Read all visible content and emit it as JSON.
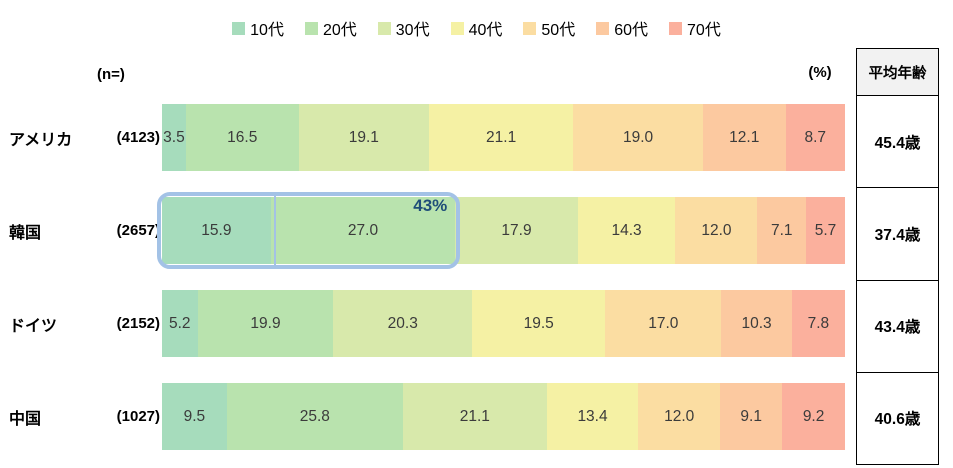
{
  "headers": {
    "n_label": "(n=)",
    "pct_label": "(%)",
    "avg_age_header": "平均年齢"
  },
  "chart_data": {
    "type": "bar",
    "subtype": "horizontal-stacked-100pct",
    "unit": "%",
    "legend_position": "top-center",
    "series_labels": [
      "10代",
      "20代",
      "30代",
      "40代",
      "50代",
      "60代",
      "70代"
    ],
    "series_colors": [
      "#a6dcbc",
      "#b9e3ae",
      "#d8e9ab",
      "#f5f1a4",
      "#fbdda2",
      "#fcc9a0",
      "#fbb09d"
    ],
    "rows": [
      {
        "country": "アメリカ",
        "n": "(4123)",
        "values": [
          "3.5",
          "16.5",
          "19.1",
          "21.1",
          "19.0",
          "12.1",
          "8.7"
        ],
        "avg_age": "45.4歳"
      },
      {
        "country": "韓国",
        "n": "(2657)",
        "values": [
          "15.9",
          "27.0",
          "17.9",
          "14.3",
          "12.0",
          "7.1",
          "5.7"
        ],
        "avg_age": "37.4歳"
      },
      {
        "country": "ドイツ",
        "n": "(2152)",
        "values": [
          "5.2",
          "19.9",
          "20.3",
          "19.5",
          "17.0",
          "10.3",
          "7.8"
        ],
        "avg_age": "43.4歳"
      },
      {
        "country": "中国",
        "n": "(1027)",
        "values": [
          "9.5",
          "25.8",
          "21.1",
          "13.4",
          "12.0",
          "9.1",
          "9.2"
        ],
        "avg_age": "40.6歳"
      }
    ],
    "highlight": {
      "row_index": 1,
      "segment_span": [
        0,
        1
      ],
      "label": "43%",
      "border_color": "#a3c2e6",
      "label_color": "#1f4e79"
    }
  }
}
